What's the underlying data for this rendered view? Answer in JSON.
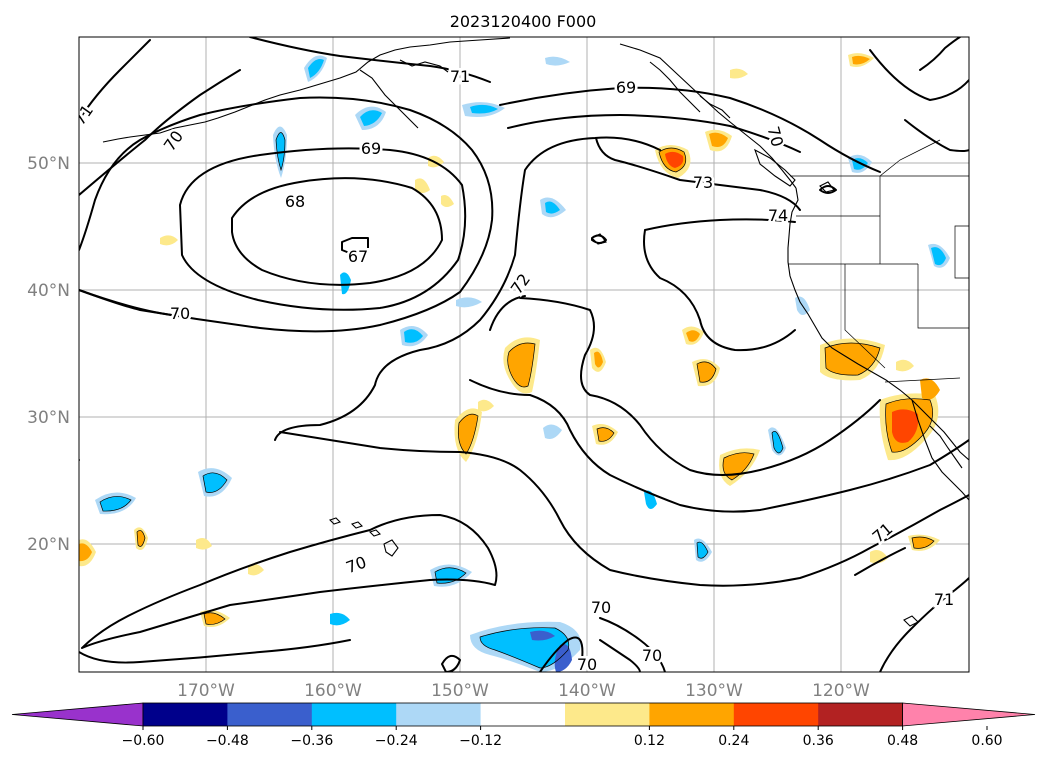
{
  "title": "2023120400 F000",
  "map": {
    "lat_labels": [
      "50°N",
      "40°N",
      "30°N",
      "20°N"
    ],
    "lon_labels": [
      "170°W",
      "160°W",
      "150°W",
      "140°W",
      "130°W",
      "120°W"
    ],
    "grid": true,
    "contour_labels": [
      "71",
      "70",
      "69",
      "68",
      "67",
      "70",
      "72",
      "69",
      "73",
      "74",
      "70",
      "70",
      "70",
      "70",
      "70",
      "71",
      "71"
    ]
  },
  "colorbar": {
    "ticks": [
      "−0.60",
      "−0.48",
      "−0.36",
      "−0.24",
      "−0.12",
      "0.12",
      "0.24",
      "0.36",
      "0.48",
      "0.60"
    ],
    "colors": [
      "#9932cc",
      "#00008b",
      "#3a5fcd",
      "#00bfff",
      "#add8f6",
      "#ffffff",
      "#fde98b",
      "#ffa500",
      "#ff4500",
      "#b22222",
      "#ff82ab"
    ],
    "extend": "both"
  }
}
